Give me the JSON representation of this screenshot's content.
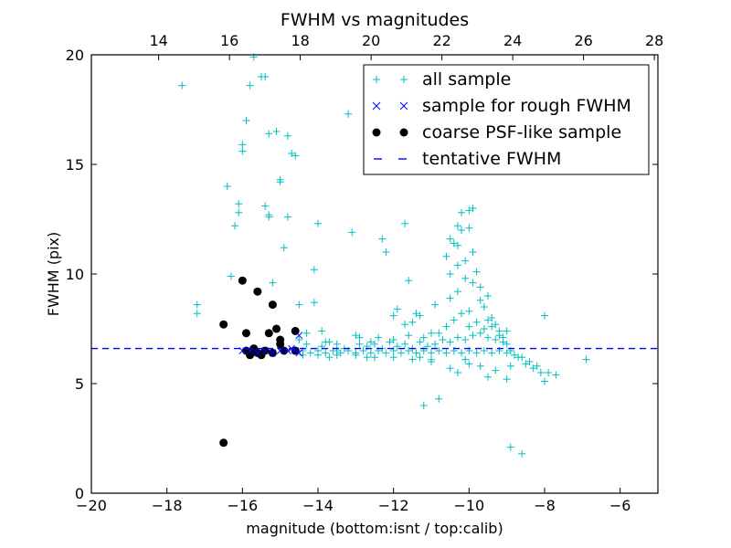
{
  "chart_data": {
    "type": "scatter",
    "title": "FWHM vs magnitudes",
    "xlabel": "magnitude (bottom:isnt / top:calib)",
    "ylabel": "FWHM (pix)",
    "xlim": [
      -20,
      -5
    ],
    "ylim": [
      0,
      20
    ],
    "x_ticks": [
      -20,
      -18,
      -16,
      -14,
      -12,
      -10,
      -8,
      -6
    ],
    "x_tick_labels": [
      "−20",
      "−18",
      "−16",
      "−14",
      "−12",
      "−10",
      "−8",
      "−6"
    ],
    "y_ticks": [
      0,
      5,
      10,
      15,
      20
    ],
    "y_tick_labels": [
      "0",
      "5",
      "10",
      "15",
      "20"
    ],
    "top_axis": {
      "xlim": [
        12.1,
        28.1
      ],
      "ticks": [
        14,
        16,
        18,
        20,
        22,
        24,
        26,
        28
      ],
      "tick_labels": [
        "14",
        "16",
        "18",
        "20",
        "22",
        "24",
        "26",
        "28"
      ]
    },
    "legend_position": "top-right",
    "colors": {
      "all": "#00bfbf",
      "rough": "#0000ff",
      "psf": "#000000",
      "fwhm_line": "#0000ff"
    },
    "series": [
      {
        "name": "all sample",
        "marker": "+",
        "points": [
          [
            -17.6,
            18.6
          ],
          [
            -17.2,
            8.6
          ],
          [
            -17.2,
            8.2
          ],
          [
            -16.4,
            14.0
          ],
          [
            -16.3,
            9.9
          ],
          [
            -16.2,
            12.2
          ],
          [
            -16.1,
            12.8
          ],
          [
            -16.1,
            13.2
          ],
          [
            -16.0,
            15.6
          ],
          [
            -16.0,
            15.9
          ],
          [
            -15.9,
            17.0
          ],
          [
            -15.8,
            18.6
          ],
          [
            -15.7,
            19.9
          ],
          [
            -15.5,
            19.0
          ],
          [
            -15.4,
            19.0
          ],
          [
            -15.4,
            13.1
          ],
          [
            -15.3,
            12.7
          ],
          [
            -15.3,
            12.6
          ],
          [
            -15.3,
            16.4
          ],
          [
            -15.2,
            9.6
          ],
          [
            -15.1,
            16.5
          ],
          [
            -15.0,
            14.3
          ],
          [
            -15.0,
            14.2
          ],
          [
            -14.9,
            11.2
          ],
          [
            -14.8,
            12.6
          ],
          [
            -14.8,
            16.3
          ],
          [
            -14.7,
            15.5
          ],
          [
            -14.6,
            15.4
          ],
          [
            -14.5,
            8.6
          ],
          [
            -14.5,
            7.0
          ],
          [
            -14.1,
            8.7
          ],
          [
            -14.1,
            10.2
          ],
          [
            -14.0,
            12.3
          ],
          [
            -13.9,
            7.4
          ],
          [
            -13.8,
            6.9
          ],
          [
            -13.5,
            6.5
          ],
          [
            -13.2,
            17.3
          ],
          [
            -13.1,
            11.9
          ],
          [
            -13.0,
            7.2
          ],
          [
            -12.9,
            6.8
          ],
          [
            -12.6,
            6.9
          ],
          [
            -12.4,
            7.1
          ],
          [
            -12.3,
            11.6
          ],
          [
            -12.2,
            11.0
          ],
          [
            -12.0,
            8.1
          ],
          [
            -11.9,
            8.4
          ],
          [
            -11.7,
            7.7
          ],
          [
            -11.7,
            12.3
          ],
          [
            -11.6,
            9.7
          ],
          [
            -11.5,
            7.8
          ],
          [
            -11.4,
            8.2
          ],
          [
            -11.2,
            4.0
          ],
          [
            -11.0,
            7.3
          ],
          [
            -11.0,
            6.1
          ],
          [
            -10.8,
            4.3
          ],
          [
            -10.6,
            10.8
          ],
          [
            -10.5,
            11.6
          ],
          [
            -10.4,
            11.4
          ],
          [
            -10.3,
            11.3
          ],
          [
            -10.3,
            12.2
          ],
          [
            -10.2,
            12.8
          ],
          [
            -10.2,
            12.0
          ],
          [
            -10.0,
            12.9
          ],
          [
            -10.0,
            12.1
          ],
          [
            -9.9,
            13.0
          ],
          [
            -9.9,
            11.0
          ],
          [
            -10.3,
            9.2
          ],
          [
            -10.1,
            9.8
          ],
          [
            -10.0,
            8.3
          ],
          [
            -9.8,
            10.1
          ],
          [
            -9.7,
            8.8
          ],
          [
            -9.6,
            8.5
          ],
          [
            -9.5,
            7.9
          ],
          [
            -9.4,
            8.0
          ],
          [
            -9.3,
            7.7
          ],
          [
            -9.2,
            7.4
          ],
          [
            -9.1,
            7.1
          ],
          [
            -9.0,
            6.8
          ],
          [
            -8.9,
            6.5
          ],
          [
            -8.7,
            6.2
          ],
          [
            -8.5,
            5.9
          ],
          [
            -8.3,
            5.7
          ],
          [
            -8.1,
            5.5
          ],
          [
            -8.0,
            5.1
          ],
          [
            -7.9,
            5.5
          ],
          [
            -7.7,
            5.4
          ],
          [
            -6.9,
            6.1
          ],
          [
            -8.0,
            8.1
          ],
          [
            -8.9,
            2.1
          ],
          [
            -8.6,
            1.8
          ],
          [
            -9.0,
            5.2
          ],
          [
            -9.5,
            5.3
          ],
          [
            -10.0,
            5.9
          ],
          [
            -10.5,
            5.7
          ],
          [
            -11.0,
            6.0
          ],
          [
            -11.5,
            6.1
          ],
          [
            -12.0,
            6.2
          ],
          [
            -12.5,
            6.2
          ],
          [
            -13.0,
            6.3
          ],
          [
            -13.5,
            6.3
          ],
          [
            -14.0,
            6.3
          ],
          [
            -14.4,
            6.5
          ],
          [
            -14.4,
            6.3
          ],
          [
            -14.2,
            6.4
          ],
          [
            -14.0,
            6.5
          ],
          [
            -13.8,
            6.4
          ],
          [
            -13.6,
            6.5
          ],
          [
            -13.4,
            6.4
          ],
          [
            -13.2,
            6.5
          ],
          [
            -13.0,
            6.4
          ],
          [
            -12.8,
            6.5
          ],
          [
            -12.6,
            6.4
          ],
          [
            -12.4,
            6.5
          ],
          [
            -12.2,
            6.4
          ],
          [
            -12.0,
            6.5
          ],
          [
            -11.8,
            6.4
          ],
          [
            -11.6,
            6.5
          ],
          [
            -11.4,
            6.4
          ],
          [
            -11.2,
            6.5
          ],
          [
            -11.0,
            6.4
          ],
          [
            -10.8,
            6.5
          ],
          [
            -10.6,
            6.4
          ],
          [
            -10.4,
            6.5
          ],
          [
            -10.2,
            6.4
          ],
          [
            -10.0,
            6.5
          ],
          [
            -9.8,
            6.4
          ],
          [
            -9.6,
            6.5
          ],
          [
            -9.4,
            6.4
          ],
          [
            -9.2,
            6.5
          ],
          [
            -9.0,
            6.4
          ],
          [
            -8.8,
            6.3
          ],
          [
            -8.6,
            6.2
          ],
          [
            -8.4,
            6.0
          ],
          [
            -8.2,
            5.8
          ],
          [
            -14.3,
            6.8
          ],
          [
            -14.3,
            7.3
          ],
          [
            -13.9,
            6.7
          ],
          [
            -13.7,
            6.9
          ],
          [
            -13.5,
            6.8
          ],
          [
            -13.3,
            6.6
          ],
          [
            -12.9,
            7.1
          ],
          [
            -12.7,
            6.7
          ],
          [
            -12.5,
            6.8
          ],
          [
            -12.3,
            6.6
          ],
          [
            -12.1,
            6.9
          ],
          [
            -11.9,
            6.7
          ],
          [
            -11.7,
            6.8
          ],
          [
            -11.5,
            6.6
          ],
          [
            -11.3,
            6.9
          ],
          [
            -11.1,
            6.7
          ],
          [
            -10.9,
            6.8
          ],
          [
            -10.7,
            7.0
          ],
          [
            -10.5,
            6.9
          ],
          [
            -10.3,
            7.1
          ],
          [
            -10.1,
            7.0
          ],
          [
            -9.9,
            7.2
          ],
          [
            -9.7,
            7.3
          ],
          [
            -9.5,
            7.1
          ],
          [
            -9.3,
            7.0
          ],
          [
            -9.1,
            6.9
          ],
          [
            -10.6,
            7.6
          ],
          [
            -10.4,
            7.9
          ],
          [
            -10.2,
            8.2
          ],
          [
            -10.0,
            7.6
          ],
          [
            -9.8,
            7.8
          ],
          [
            -9.6,
            7.5
          ],
          [
            -9.4,
            7.6
          ],
          [
            -9.2,
            7.2
          ],
          [
            -9.0,
            7.4
          ],
          [
            -10.8,
            7.3
          ],
          [
            -11.2,
            7.1
          ],
          [
            -11.6,
            7.2
          ],
          [
            -12.0,
            7.0
          ],
          [
            -10.5,
            10.0
          ],
          [
            -10.3,
            10.4
          ],
          [
            -10.1,
            10.6
          ],
          [
            -9.9,
            9.6
          ],
          [
            -9.7,
            9.4
          ],
          [
            -9.5,
            9.0
          ],
          [
            -10.5,
            8.9
          ],
          [
            -10.9,
            8.6
          ],
          [
            -11.3,
            8.1
          ],
          [
            -10.1,
            6.1
          ],
          [
            -9.7,
            5.8
          ],
          [
            -9.3,
            5.6
          ],
          [
            -8.9,
            5.8
          ],
          [
            -10.3,
            5.5
          ],
          [
            -11.3,
            6.2
          ],
          [
            -12.7,
            6.2
          ],
          [
            -13.7,
            6.2
          ]
        ]
      },
      {
        "name": "sample for rough FWHM",
        "marker": "x",
        "points": [
          [
            -14.5,
            6.4
          ],
          [
            -14.5,
            7.2
          ],
          [
            -14.6,
            6.5
          ],
          [
            -14.7,
            6.6
          ],
          [
            -14.8,
            6.5
          ],
          [
            -15.0,
            6.5
          ],
          [
            -15.2,
            6.4
          ],
          [
            -15.4,
            6.5
          ],
          [
            -15.6,
            6.4
          ],
          [
            -15.8,
            6.5
          ],
          [
            -16.0,
            6.5
          ]
        ]
      },
      {
        "name": "coarse PSF-like sample",
        "marker": "o",
        "points": [
          [
            -16.5,
            7.7
          ],
          [
            -16.5,
            2.3
          ],
          [
            -16.0,
            9.7
          ],
          [
            -15.9,
            7.3
          ],
          [
            -15.9,
            6.5
          ],
          [
            -15.8,
            6.3
          ],
          [
            -15.7,
            6.6
          ],
          [
            -15.6,
            9.2
          ],
          [
            -15.6,
            6.4
          ],
          [
            -15.5,
            6.3
          ],
          [
            -15.4,
            6.5
          ],
          [
            -15.3,
            7.3
          ],
          [
            -15.2,
            8.6
          ],
          [
            -15.2,
            6.4
          ],
          [
            -15.1,
            7.5
          ],
          [
            -15.0,
            6.8
          ],
          [
            -15.0,
            7.0
          ],
          [
            -14.9,
            6.5
          ],
          [
            -14.6,
            7.4
          ],
          [
            -14.6,
            6.5
          ]
        ]
      }
    ],
    "reference_line": {
      "name": "tentative FWHM",
      "style": "dashed",
      "y": 6.6
    },
    "legend": [
      "all sample",
      "sample for rough FWHM",
      "coarse PSF-like sample",
      "tentative FWHM"
    ]
  }
}
